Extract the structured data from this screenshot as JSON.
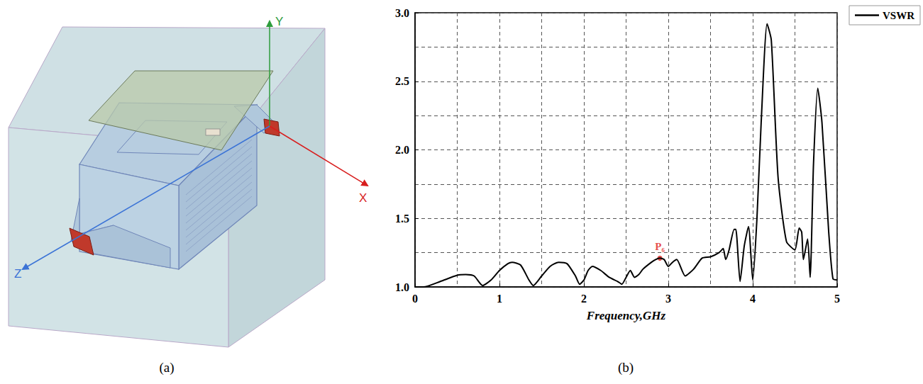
{
  "diagram": {
    "label": "(a)",
    "axes": [
      {
        "name": "X",
        "color": "#d81e1e"
      },
      {
        "name": "Y",
        "color": "#2e9c3c"
      },
      {
        "name": "Z",
        "color": "#3b73d6"
      }
    ]
  },
  "chart_data": {
    "type": "line",
    "panel_label": "(b)",
    "x_label": "Frequency,GHz",
    "x": [
      0,
      0.1,
      0.3,
      0.5,
      0.6,
      0.7,
      0.8,
      0.9,
      1.0,
      1.1,
      1.15,
      1.25,
      1.35,
      1.4,
      1.5,
      1.6,
      1.7,
      1.8,
      1.9,
      1.95,
      2.0,
      2.05,
      2.1,
      2.2,
      2.3,
      2.4,
      2.45,
      2.5,
      2.55,
      2.6,
      2.65,
      2.7,
      2.8,
      2.85,
      2.9,
      2.95,
      3.0,
      3.05,
      3.1,
      3.2,
      3.3,
      3.4,
      3.5,
      3.6,
      3.65,
      3.68,
      3.72,
      3.78,
      3.8,
      3.85,
      3.9,
      3.95,
      4.0,
      4.05,
      4.1,
      4.17,
      4.22,
      4.3,
      4.4,
      4.5,
      4.55,
      4.58,
      4.6,
      4.65,
      4.68,
      4.72,
      4.77,
      4.82,
      4.9,
      4.95,
      5.0
    ],
    "series": [
      {
        "name": "VSWR",
        "color": "#000000",
        "line_style": "solid",
        "values": [
          1.0,
          1.0,
          1.04,
          1.085,
          1.09,
          1.08,
          1.01,
          1.05,
          1.12,
          1.17,
          1.18,
          1.16,
          1.05,
          1.01,
          1.08,
          1.15,
          1.18,
          1.17,
          1.08,
          1.02,
          1.05,
          1.12,
          1.15,
          1.12,
          1.07,
          1.04,
          1.02,
          1.07,
          1.12,
          1.07,
          1.09,
          1.13,
          1.18,
          1.2,
          1.21,
          1.2,
          1.15,
          1.18,
          1.2,
          1.08,
          1.13,
          1.21,
          1.22,
          1.25,
          1.28,
          1.2,
          1.27,
          1.42,
          1.42,
          1.04,
          1.3,
          1.44,
          1.05,
          1.5,
          2.2,
          2.92,
          2.8,
          1.8,
          1.33,
          1.27,
          1.43,
          1.4,
          1.2,
          1.35,
          1.07,
          1.9,
          2.45,
          2.2,
          1.4,
          1.06,
          1.05
        ]
      }
    ],
    "xlim": [
      0,
      5
    ],
    "xticks": [
      0,
      1,
      2,
      3,
      4,
      5
    ],
    "ylim": [
      1,
      3
    ],
    "yticks": [
      {
        "value": 1,
        "label": "1.0"
      },
      {
        "value": 1.5,
        "label": "1.5"
      },
      {
        "value": 2,
        "label": "2.0"
      },
      {
        "value": 2.5,
        "label": "2.5"
      },
      {
        "value": 3,
        "label": "3.0"
      }
    ],
    "grid": true,
    "legend": "upper right",
    "annotations": [
      {
        "text": "P₆",
        "x": 2.9,
        "y": 1.21,
        "color": "#e0201b"
      }
    ]
  }
}
